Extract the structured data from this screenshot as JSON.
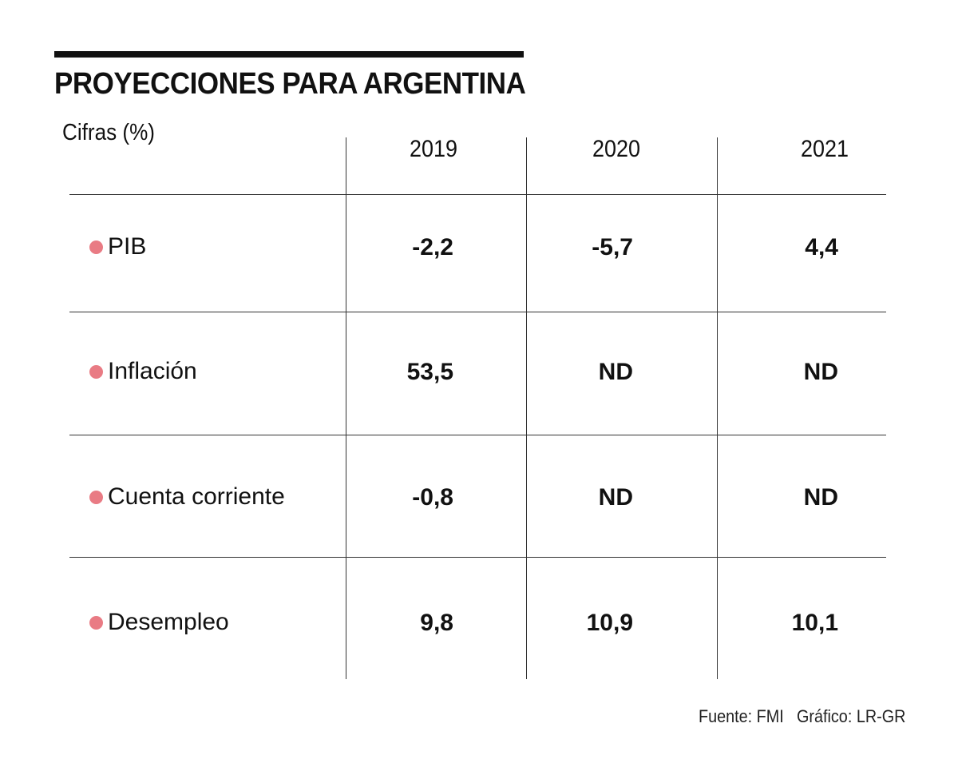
{
  "title": "PROYECCIONES PARA ARGENTINA",
  "subtitle": "Cifras (%)",
  "colors": {
    "bullet": "#e97b84",
    "text": "#111111",
    "rule": "#333333"
  },
  "footer": {
    "source": "Fuente: FMI",
    "credit": "Gráfico: LR-GR"
  },
  "chart_data": {
    "type": "table",
    "title": "PROYECCIONES PARA ARGENTINA",
    "subtitle": "Cifras (%)",
    "columns": [
      "2019",
      "2020",
      "2021"
    ],
    "rows": [
      {
        "label": "PIB",
        "values": [
          "-2,2",
          "-5,7",
          "4,4"
        ]
      },
      {
        "label": "Inflación",
        "values": [
          "53,5",
          "ND",
          "ND"
        ]
      },
      {
        "label": "Cuenta corriente",
        "values": [
          "-0,8",
          "ND",
          "ND"
        ]
      },
      {
        "label": "Desempleo",
        "values": [
          "9,8",
          "10,9",
          "10,1"
        ]
      }
    ],
    "source": "Fuente: FMI",
    "credit": "Gráfico: LR-GR"
  }
}
